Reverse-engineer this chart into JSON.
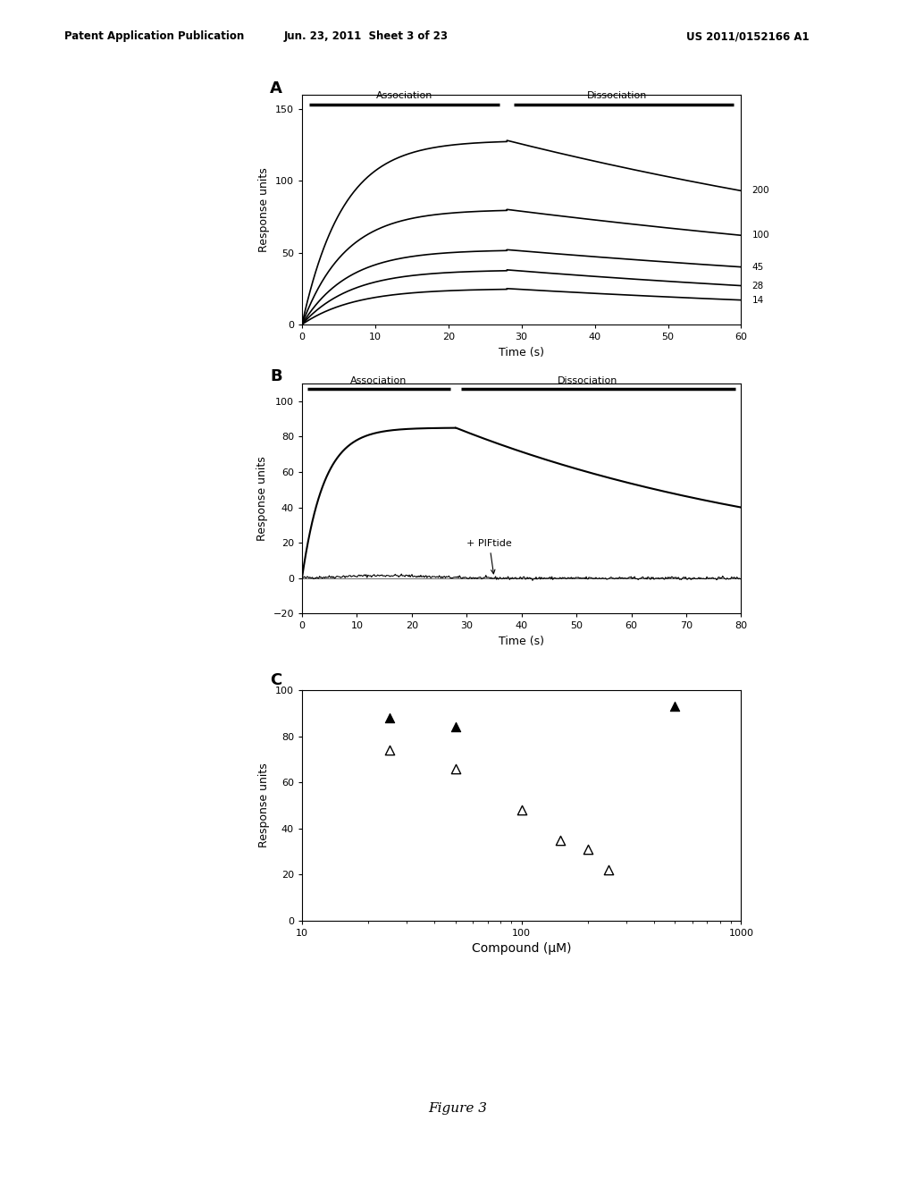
{
  "header_left": "Patent Application Publication",
  "header_center": "Jun. 23, 2011  Sheet 3 of 23",
  "header_right": "US 2011/0152166 A1",
  "footer": "Figure 3",
  "panel_A": {
    "label": "A",
    "xlabel": "Time (s)",
    "ylabel": "Response units",
    "xlim": [
      0,
      60
    ],
    "ylim": [
      0,
      160
    ],
    "xticks": [
      0,
      10,
      20,
      30,
      40,
      50,
      60
    ],
    "yticks": [
      0,
      50,
      100,
      150
    ],
    "assoc_label": "Association",
    "dissoc_label": "Dissociation",
    "switch_t": 28,
    "curves": [
      {
        "label": "200",
        "peak_y": 128,
        "end_y": 93,
        "k_on": 0.18
      },
      {
        "label": "100",
        "peak_y": 80,
        "end_y": 62,
        "k_on": 0.17
      },
      {
        "label": "45",
        "peak_y": 52,
        "end_y": 40,
        "k_on": 0.16
      },
      {
        "label": "28",
        "peak_y": 38,
        "end_y": 27,
        "k_on": 0.15
      },
      {
        "label": "14",
        "peak_y": 25,
        "end_y": 17,
        "k_on": 0.14
      }
    ]
  },
  "panel_B": {
    "label": "B",
    "xlabel": "Time (s)",
    "ylabel": "Response units",
    "xlim": [
      0,
      80
    ],
    "ylim": [
      -20,
      110
    ],
    "xticks": [
      0,
      10,
      20,
      30,
      40,
      50,
      60,
      70,
      80
    ],
    "yticks": [
      -20,
      0,
      20,
      40,
      60,
      80,
      100
    ],
    "assoc_label": "Association",
    "dissoc_label": "Dissociation",
    "switch_t": 28,
    "peak_y": 85,
    "end_y": 40,
    "k_on": 0.25,
    "piftide_label": "+ PIFtide"
  },
  "panel_C": {
    "label": "C",
    "xlabel": "Compound (μM)",
    "ylabel": "Response units",
    "xlim_log": [
      10,
      1000
    ],
    "ylim": [
      0,
      100
    ],
    "yticks": [
      0,
      20,
      40,
      60,
      80,
      100
    ],
    "points_filled": [
      [
        25,
        88
      ],
      [
        50,
        84
      ],
      [
        500,
        93
      ]
    ],
    "points_open": [
      [
        25,
        74
      ],
      [
        50,
        66
      ],
      [
        100,
        48
      ],
      [
        150,
        35
      ],
      [
        200,
        31
      ],
      [
        250,
        22
      ]
    ]
  }
}
